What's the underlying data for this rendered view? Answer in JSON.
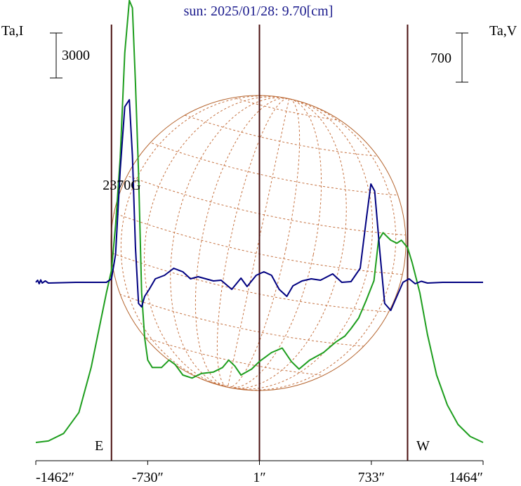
{
  "chart_data": {
    "type": "line",
    "title": "sun: 2025/01/28: 9.70[cm]",
    "left_axis_label": "Ta,I",
    "right_axis_label": "Ta,V",
    "left_scale_label": "3000",
    "right_scale_label": "700",
    "x_tick_labels": [
      "-1462″",
      "-730″",
      "1″",
      "733″",
      "1464″"
    ],
    "x_ticks": [
      -1462,
      -730,
      1,
      733,
      1464
    ],
    "xlim": [
      -1462,
      1464
    ],
    "vertical_lines_x": [
      -967,
      1,
      970
    ],
    "limb_labels": {
      "east": "E",
      "west": "W"
    },
    "annotation": {
      "text": "2370G",
      "x": -850
    },
    "series": [
      {
        "color": "#1e9e1e",
        "points": [
          [
            -1462,
            0
          ],
          [
            -1380,
            100
          ],
          [
            -1280,
            600
          ],
          [
            -1180,
            2000
          ],
          [
            -1100,
            5000
          ],
          [
            -1050,
            7500
          ],
          [
            -1000,
            10000
          ],
          [
            -967,
            11500
          ],
          [
            -940,
            14500
          ],
          [
            -910,
            19000
          ],
          [
            -880,
            26000
          ],
          [
            -850,
            29500
          ],
          [
            -830,
            29000
          ],
          [
            -810,
            24000
          ],
          [
            -790,
            18000
          ],
          [
            -770,
            10000
          ],
          [
            -750,
            7000
          ],
          [
            -730,
            5500
          ],
          [
            -700,
            5000
          ],
          [
            -640,
            5000
          ],
          [
            -590,
            5500
          ],
          [
            -550,
            5200
          ],
          [
            -500,
            4500
          ],
          [
            -440,
            4300
          ],
          [
            -380,
            4600
          ],
          [
            -300,
            4700
          ],
          [
            -240,
            5000
          ],
          [
            -200,
            5500
          ],
          [
            -160,
            5100
          ],
          [
            -120,
            4500
          ],
          [
            -50,
            4900
          ],
          [
            0,
            5400
          ],
          [
            80,
            6000
          ],
          [
            150,
            6300
          ],
          [
            210,
            5400
          ],
          [
            260,
            4900
          ],
          [
            330,
            5500
          ],
          [
            420,
            6000
          ],
          [
            500,
            6700
          ],
          [
            560,
            7100
          ],
          [
            600,
            7600
          ],
          [
            650,
            8300
          ],
          [
            700,
            9500
          ],
          [
            750,
            10800
          ],
          [
            780,
            13500
          ],
          [
            810,
            14000
          ],
          [
            860,
            13500
          ],
          [
            900,
            13300
          ],
          [
            930,
            13500
          ],
          [
            970,
            13000
          ],
          [
            1000,
            12000
          ],
          [
            1050,
            10000
          ],
          [
            1100,
            7200
          ],
          [
            1160,
            4500
          ],
          [
            1230,
            2500
          ],
          [
            1300,
            1200
          ],
          [
            1380,
            400
          ],
          [
            1464,
            0
          ]
        ]
      },
      {
        "color": "#000080",
        "points": [
          [
            -1462,
            0
          ],
          [
            -1450,
            30
          ],
          [
            -1440,
            -20
          ],
          [
            -1430,
            35
          ],
          [
            -1420,
            -10
          ],
          [
            -1400,
            20
          ],
          [
            -1380,
            -10
          ],
          [
            -1200,
            0
          ],
          [
            -1000,
            0
          ],
          [
            -967,
            50
          ],
          [
            -940,
            400
          ],
          [
            -910,
            1600
          ],
          [
            -880,
            2500
          ],
          [
            -850,
            2600
          ],
          [
            -830,
            1800
          ],
          [
            -810,
            500
          ],
          [
            -790,
            -300
          ],
          [
            -770,
            -350
          ],
          [
            -750,
            -200
          ],
          [
            -720,
            -100
          ],
          [
            -680,
            50
          ],
          [
            -620,
            100
          ],
          [
            -560,
            200
          ],
          [
            -500,
            150
          ],
          [
            -450,
            50
          ],
          [
            -400,
            80
          ],
          [
            -300,
            20
          ],
          [
            -250,
            30
          ],
          [
            -180,
            -100
          ],
          [
            -120,
            60
          ],
          [
            -80,
            -60
          ],
          [
            -20,
            100
          ],
          [
            30,
            150
          ],
          [
            80,
            100
          ],
          [
            130,
            -100
          ],
          [
            180,
            -200
          ],
          [
            220,
            -50
          ],
          [
            280,
            20
          ],
          [
            340,
            50
          ],
          [
            400,
            30
          ],
          [
            480,
            120
          ],
          [
            540,
            0
          ],
          [
            600,
            10
          ],
          [
            660,
            200
          ],
          [
            700,
            900
          ],
          [
            730,
            1400
          ],
          [
            755,
            1300
          ],
          [
            790,
            400
          ],
          [
            820,
            -300
          ],
          [
            860,
            -400
          ],
          [
            900,
            -200
          ],
          [
            940,
            0
          ],
          [
            980,
            50
          ],
          [
            1020,
            -20
          ],
          [
            1060,
            15
          ],
          [
            1100,
            -10
          ],
          [
            1200,
            0
          ],
          [
            1464,
            0
          ]
        ]
      }
    ]
  }
}
